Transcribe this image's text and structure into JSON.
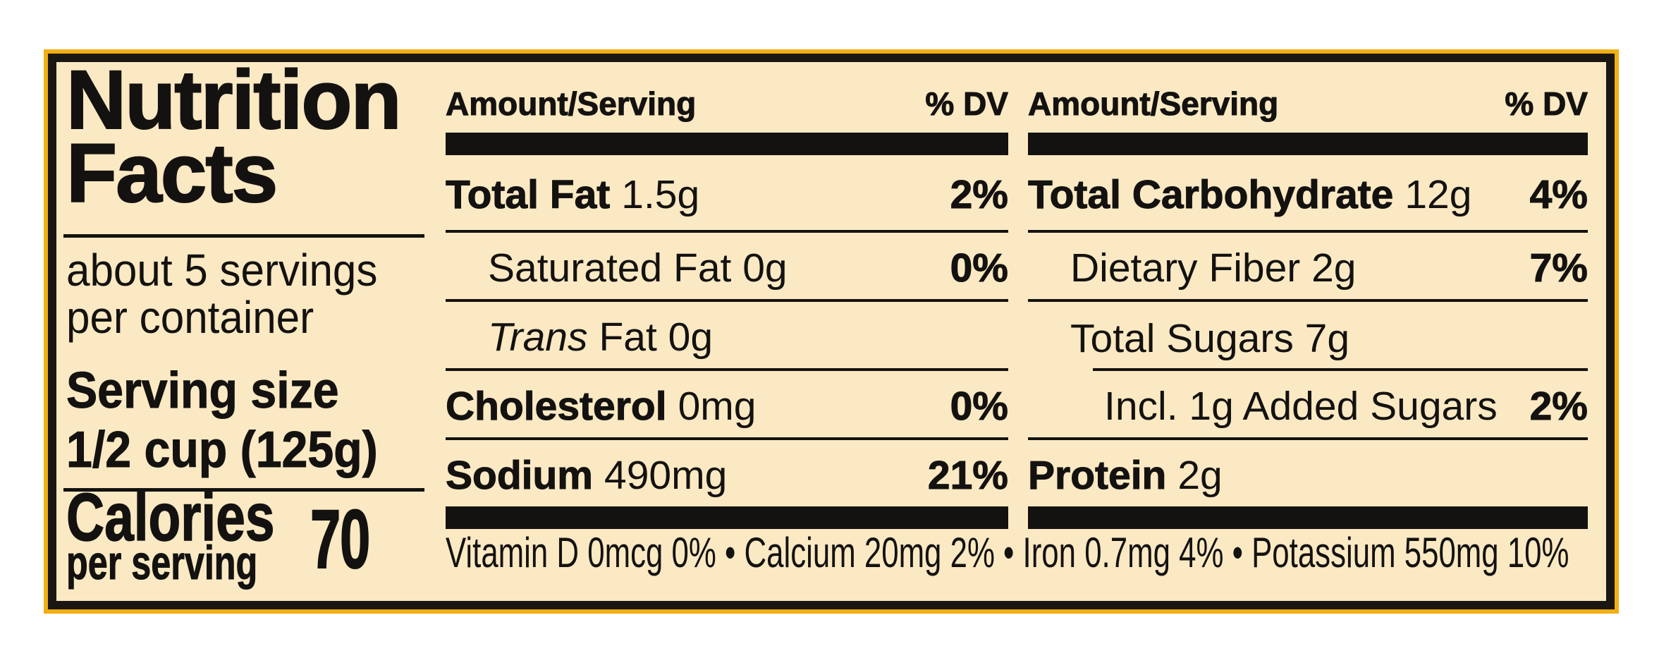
{
  "colors": {
    "canvas_bg": "#ffffff",
    "label_bg": "#fae9c3",
    "border_black": "#1a1713",
    "border_gold": "#f2ae12",
    "text": "#141210"
  },
  "label": {
    "title_line1": "Nutrition",
    "title_line2": "Facts",
    "servings_line1": "about 5 servings",
    "servings_line2": "per container",
    "serving_size_label": "Serving size",
    "serving_size_value": "1/2 cup (125g)",
    "calories_label": "Calories",
    "calories_sub": "per serving",
    "calories_value": "70"
  },
  "columns": {
    "middle": {
      "header_amount": "Amount/Serving",
      "header_dv": "% DV",
      "rows": [
        {
          "bold": "Total Fat",
          "reg": "1.5g",
          "dv": "2%",
          "indent": 0,
          "rule": "full"
        },
        {
          "reg": "Saturated Fat 0g",
          "dv": "0%",
          "indent": 1,
          "rule": "full"
        },
        {
          "ital": "Trans",
          "reg": "Fat 0g",
          "indent": 1,
          "rule": "full"
        },
        {
          "bold": "Cholesterol",
          "reg": "0mg",
          "dv": "0%",
          "indent": 0,
          "rule": "full"
        },
        {
          "bold": "Sodium",
          "reg": "490mg",
          "dv": "21%",
          "indent": 0,
          "rule": "none"
        }
      ]
    },
    "right": {
      "header_amount": "Amount/Serving",
      "header_dv": "% DV",
      "rows": [
        {
          "bold": "Total Carbohydrate",
          "reg": "12g",
          "dv": "4%",
          "indent": 0,
          "rule": "full"
        },
        {
          "reg": "Dietary Fiber 2g",
          "dv": "7%",
          "indent": 1,
          "rule": "full"
        },
        {
          "reg": "Total Sugars 7g",
          "indent": 1,
          "rule": "short"
        },
        {
          "reg": "Incl. 1g Added Sugars",
          "dv": "2%",
          "indent": 2,
          "rule": "full"
        },
        {
          "bold": "Protein",
          "reg": "2g",
          "indent": 0,
          "rule": "none"
        }
      ]
    }
  },
  "footnote": {
    "text": "Vitamin D 0mcg 0% • Calcium 20mg 2% • Iron 0.7mg 4% • Potassium 550mg 10%"
  }
}
